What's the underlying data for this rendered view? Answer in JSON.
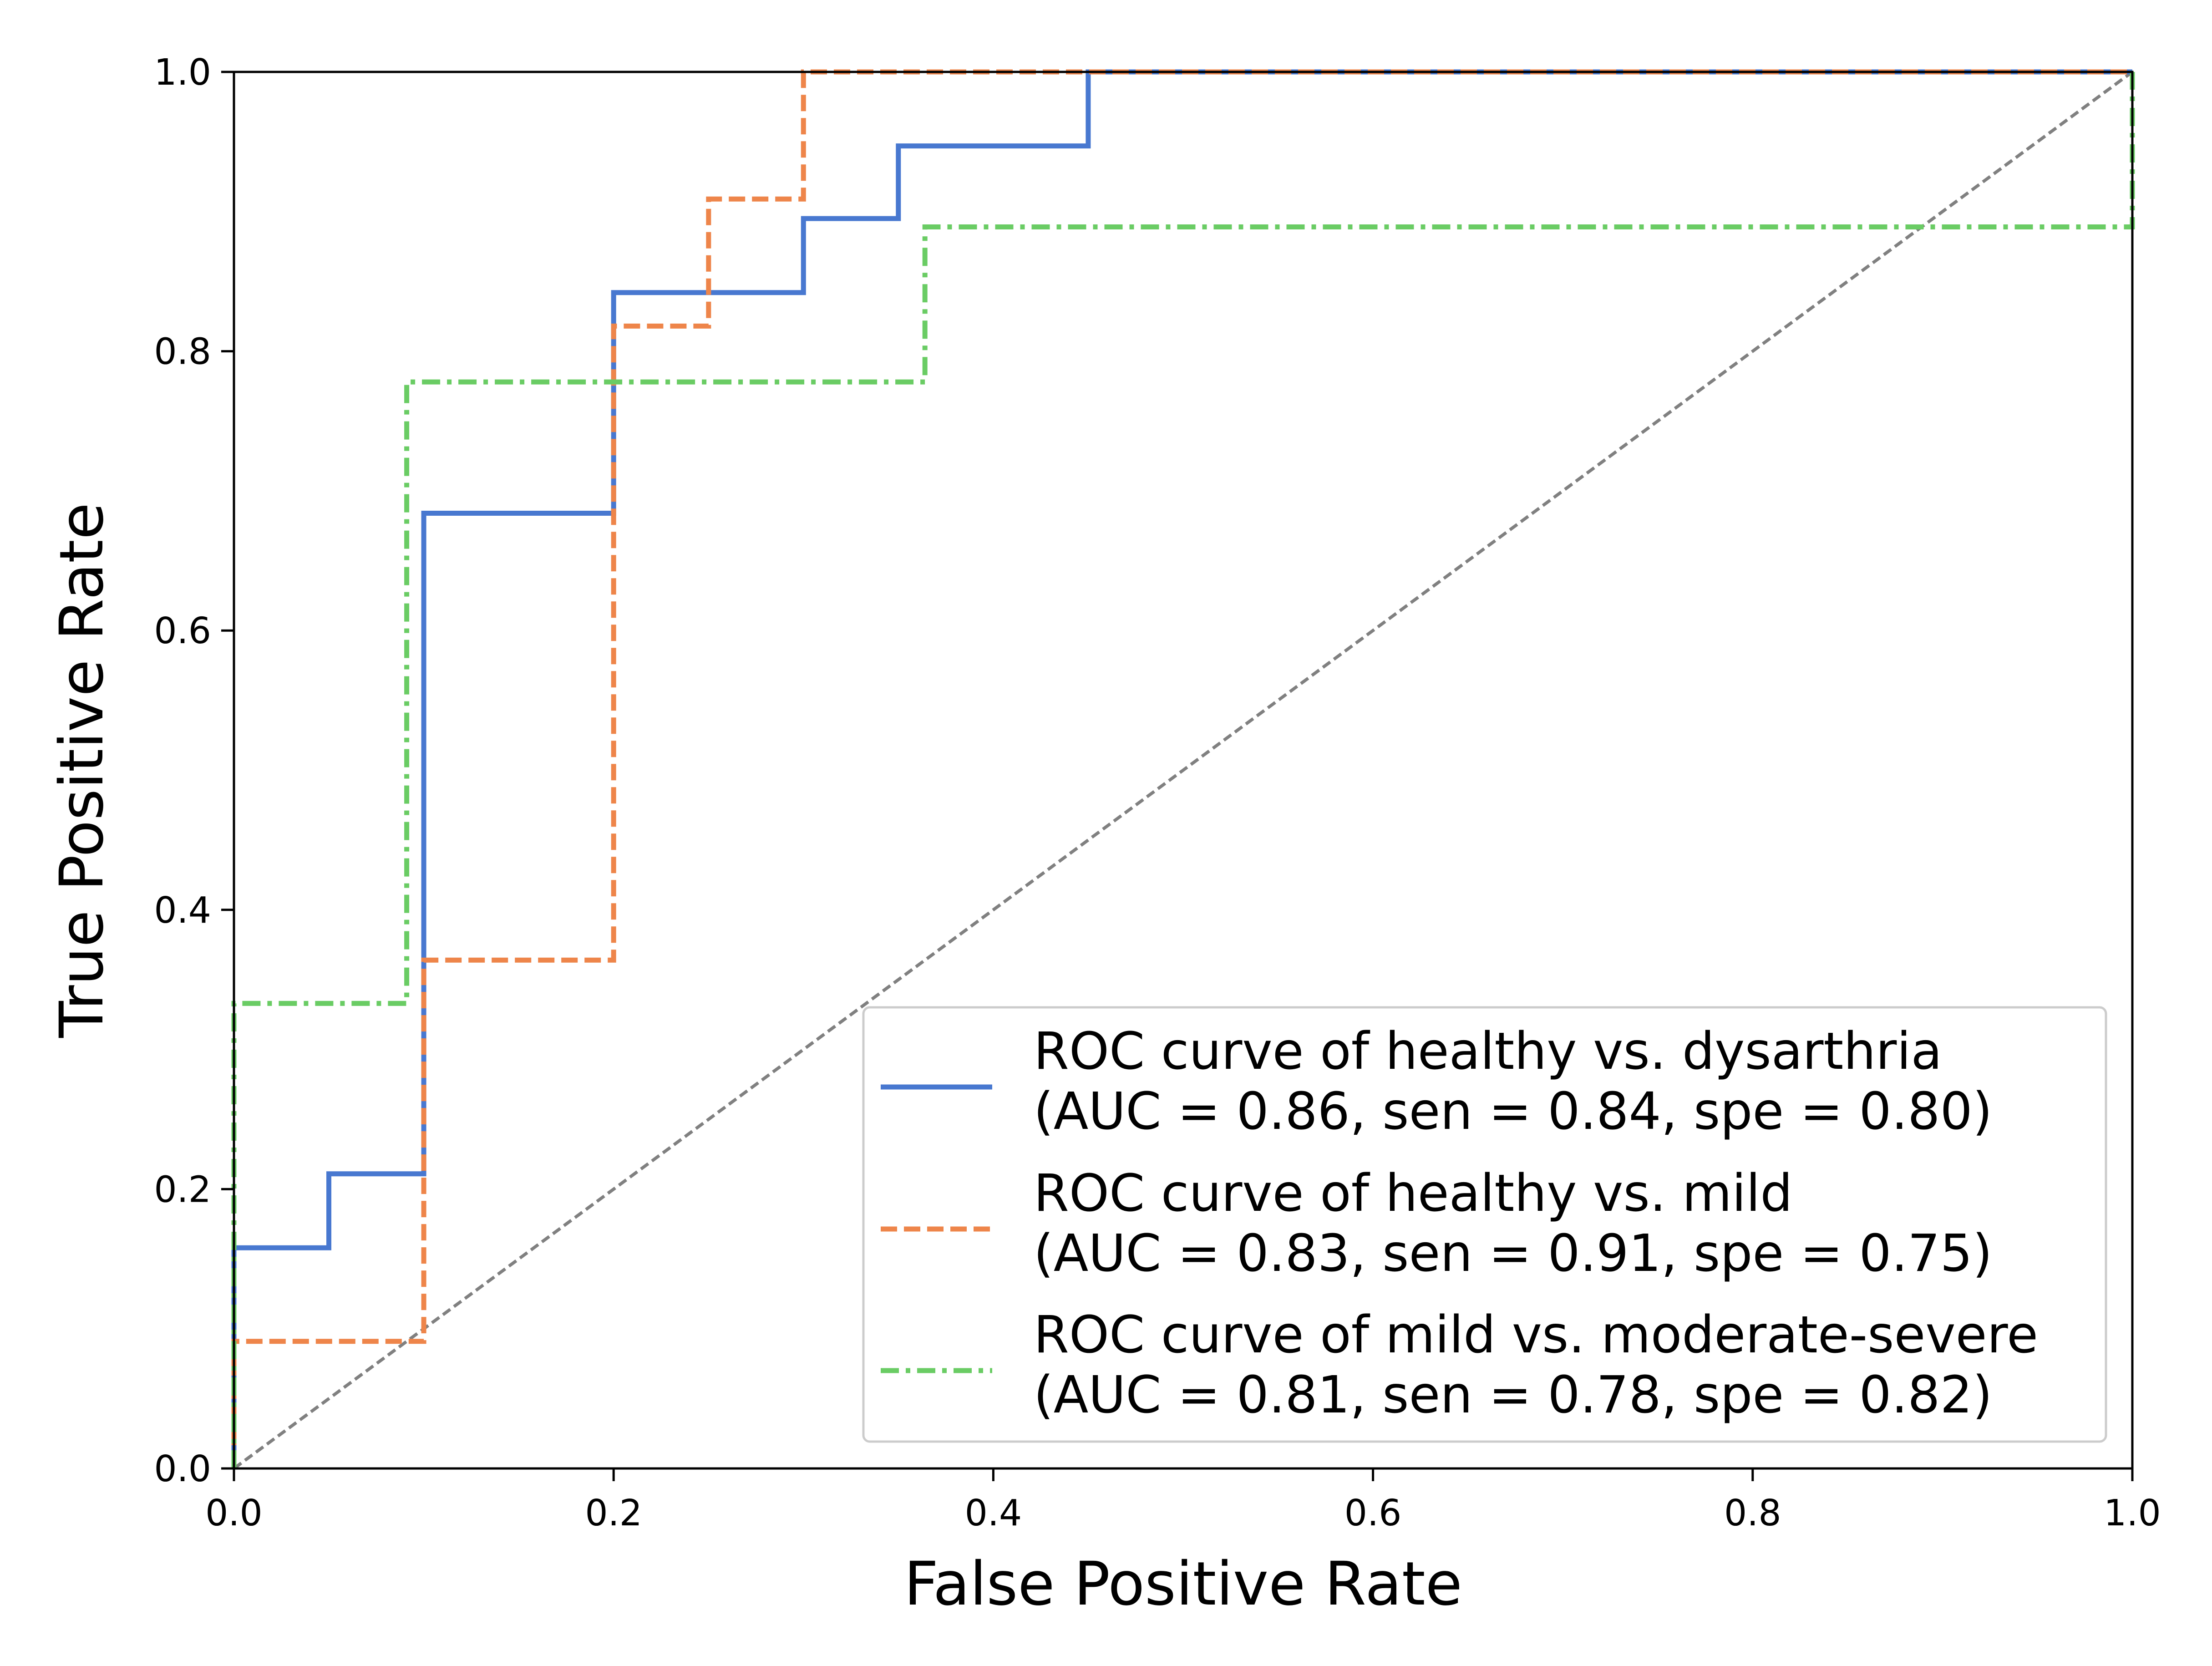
{
  "chart_data": {
    "type": "line",
    "xlabel": "False Positive Rate",
    "ylabel": "True Positive Rate",
    "xlim": [
      0.0,
      1.0
    ],
    "ylim": [
      0.0,
      1.0
    ],
    "x_ticks": [
      "0.0",
      "0.2",
      "0.4",
      "0.6",
      "0.8",
      "1.0"
    ],
    "y_ticks": [
      "0.0",
      "0.2",
      "0.4",
      "0.6",
      "0.8",
      "1.0"
    ],
    "grid": false,
    "legend_position": "lower-right",
    "series": [
      {
        "name_line1": "ROC curve of healthy vs. dysarthria",
        "name_line2": "(AUC = 0.86, sen = 0.84, spe = 0.80)",
        "color": "#4878D0",
        "style": "solid",
        "points": [
          [
            0.0,
            0.0
          ],
          [
            0.0,
            0.158
          ],
          [
            0.05,
            0.158
          ],
          [
            0.05,
            0.211
          ],
          [
            0.1,
            0.211
          ],
          [
            0.1,
            0.684
          ],
          [
            0.2,
            0.684
          ],
          [
            0.2,
            0.842
          ],
          [
            0.3,
            0.842
          ],
          [
            0.3,
            0.895
          ],
          [
            0.35,
            0.895
          ],
          [
            0.35,
            0.947
          ],
          [
            0.45,
            0.947
          ],
          [
            0.45,
            1.0
          ],
          [
            1.0,
            1.0
          ]
        ]
      },
      {
        "name_line1": "ROC curve of healthy vs. mild",
        "name_line2": "(AUC = 0.83, sen = 0.91, spe = 0.75)",
        "color": "#EE854A",
        "style": "dashed",
        "points": [
          [
            0.0,
            0.0
          ],
          [
            0.0,
            0.091
          ],
          [
            0.1,
            0.091
          ],
          [
            0.1,
            0.364
          ],
          [
            0.2,
            0.364
          ],
          [
            0.2,
            0.818
          ],
          [
            0.25,
            0.818
          ],
          [
            0.25,
            0.909
          ],
          [
            0.3,
            0.909
          ],
          [
            0.3,
            1.0
          ],
          [
            1.0,
            1.0
          ]
        ]
      },
      {
        "name_line1": "ROC curve of mild vs. moderate-severe",
        "name_line2": "(AUC = 0.81, sen = 0.78, spe = 0.82)",
        "color": "#6ACC64",
        "style": "dashdot",
        "points": [
          [
            0.0,
            0.0
          ],
          [
            0.0,
            0.333
          ],
          [
            0.091,
            0.333
          ],
          [
            0.091,
            0.778
          ],
          [
            0.364,
            0.778
          ],
          [
            0.364,
            0.889
          ],
          [
            1.0,
            0.889
          ],
          [
            1.0,
            1.0
          ]
        ]
      }
    ],
    "reference_line": {
      "color": "#808080",
      "style": "dashed",
      "points": [
        [
          0.0,
          0.0
        ],
        [
          1.0,
          1.0
        ]
      ]
    }
  }
}
